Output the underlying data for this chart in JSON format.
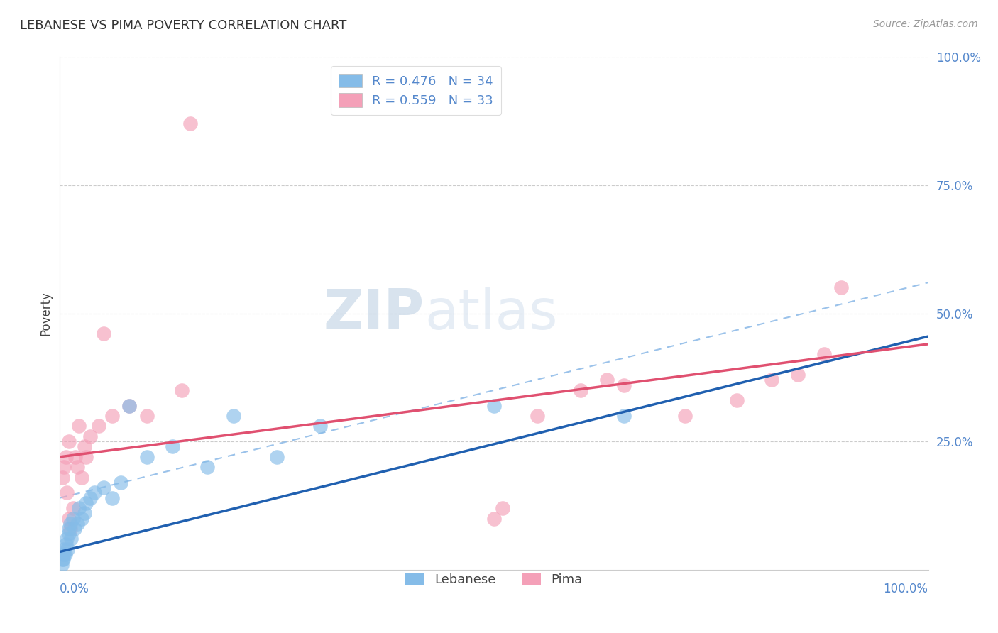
{
  "title": "LEBANESE VS PIMA POVERTY CORRELATION CHART",
  "source": "Source: ZipAtlas.com",
  "ylabel": "Poverty",
  "legend_r_lebanese": "R = 0.476",
  "legend_n_lebanese": "N = 34",
  "legend_r_pima": "R = 0.559",
  "legend_n_pima": "N = 33",
  "lebanese_color": "#85bce8",
  "pima_color": "#f4a0b8",
  "lebanese_line_color": "#2060b0",
  "pima_line_color": "#e05070",
  "dashed_line_color": "#90bce8",
  "background_color": "#ffffff",
  "grid_color": "#cccccc",
  "right_axis_color": "#5588cc",
  "title_color": "#333333",
  "source_color": "#999999",
  "watermark_color": "#d0dff0",
  "lebanese_x": [
    0.2,
    0.3,
    0.4,
    0.5,
    0.5,
    0.6,
    0.7,
    0.8,
    0.9,
    1.0,
    1.0,
    1.2,
    1.3,
    1.5,
    1.7,
    2.0,
    2.2,
    2.5,
    2.8,
    3.0,
    3.5,
    4.0,
    5.0,
    6.0,
    7.0,
    8.0,
    10.0,
    13.0,
    17.0,
    20.0,
    25.0,
    30.0,
    50.0,
    65.0
  ],
  "lebanese_y": [
    1.0,
    2.0,
    2.0,
    3.0,
    4.0,
    3.0,
    5.0,
    6.0,
    4.0,
    7.0,
    8.0,
    9.0,
    6.0,
    10.0,
    8.0,
    9.0,
    12.0,
    10.0,
    11.0,
    13.0,
    14.0,
    15.0,
    16.0,
    14.0,
    17.0,
    32.0,
    22.0,
    24.0,
    20.0,
    30.0,
    22.0,
    28.0,
    32.0,
    30.0
  ],
  "pima_x": [
    0.3,
    0.5,
    0.7,
    0.8,
    1.0,
    1.0,
    1.2,
    1.5,
    1.8,
    2.0,
    2.2,
    2.5,
    2.8,
    3.0,
    3.5,
    4.5,
    5.0,
    6.0,
    8.0,
    10.0,
    14.0,
    50.0,
    51.0,
    55.0,
    60.0,
    63.0,
    65.0,
    72.0,
    78.0,
    82.0,
    85.0,
    88.0,
    90.0
  ],
  "pima_outlier_x": 15.0,
  "pima_outlier_y": 87.0,
  "xlim": [
    0,
    100
  ],
  "ylim": [
    0,
    100
  ],
  "pima_y": [
    18.0,
    20.0,
    22.0,
    15.0,
    10.0,
    25.0,
    8.0,
    12.0,
    22.0,
    20.0,
    28.0,
    18.0,
    24.0,
    22.0,
    26.0,
    28.0,
    46.0,
    30.0,
    32.0,
    30.0,
    35.0,
    10.0,
    12.0,
    30.0,
    35.0,
    37.0,
    36.0,
    30.0,
    33.0,
    37.0,
    38.0,
    42.0,
    55.0
  ]
}
